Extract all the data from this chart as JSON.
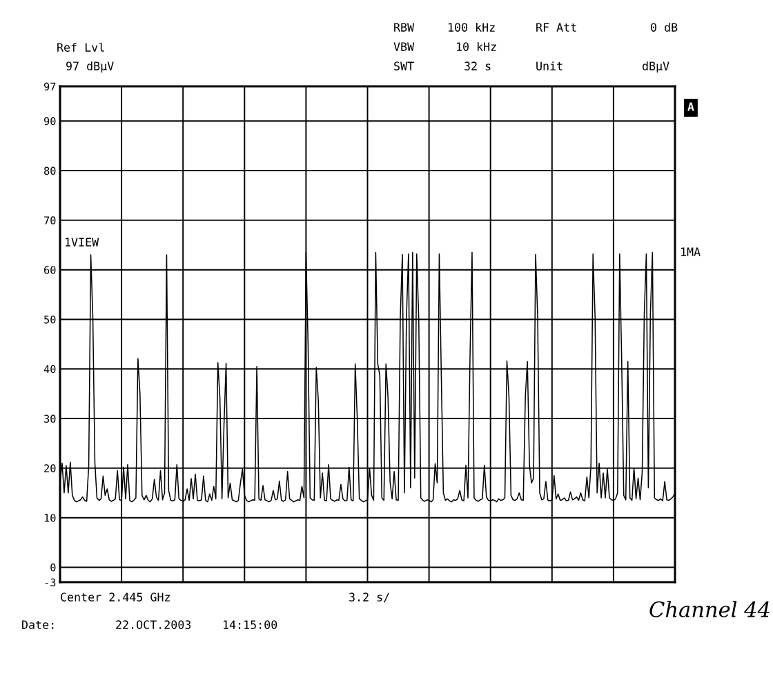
{
  "chart_data": {
    "type": "line",
    "categories": [
      null,
      null,
      null,
      null,
      null,
      null,
      null,
      null,
      null,
      null,
      null,
      null,
      null,
      null,
      null,
      null,
      null,
      null,
      null,
      null,
      null,
      null,
      null,
      null,
      null,
      null,
      null,
      null,
      null,
      null,
      null,
      null,
      null,
      null,
      null,
      null,
      null,
      null,
      null,
      null,
      null,
      null,
      null,
      null,
      null,
      null,
      null,
      null,
      null,
      null,
      null,
      null,
      null,
      null,
      null,
      null,
      null,
      null,
      null,
      null,
      null,
      null,
      null,
      null,
      null,
      null,
      null,
      null,
      null,
      null,
      null,
      null,
      null,
      null,
      null,
      null,
      null,
      null,
      null,
      null,
      null,
      null,
      null,
      null,
      null,
      null,
      null,
      null,
      null,
      null,
      null,
      null,
      null,
      null,
      null,
      null,
      null,
      null,
      null,
      null,
      null,
      null,
      null,
      null,
      null,
      null,
      null,
      null,
      null,
      null,
      null,
      null,
      null,
      null,
      null,
      null,
      null,
      null,
      null,
      null,
      null,
      null,
      null,
      null,
      null,
      null,
      null,
      null,
      null,
      null,
      null,
      null,
      null,
      null,
      null,
      null,
      null,
      null,
      null,
      null,
      null,
      null,
      null,
      null,
      null,
      null,
      null,
      null,
      null,
      null,
      null,
      null,
      null,
      null,
      null,
      null,
      null,
      null,
      null,
      null,
      null,
      null,
      null,
      null,
      null,
      null,
      null,
      null,
      null,
      null,
      null,
      null,
      null,
      null,
      null,
      null,
      null,
      null,
      null,
      null,
      null,
      null,
      null,
      null,
      null,
      null,
      null,
      null,
      null,
      null,
      null,
      null,
      null,
      null,
      null,
      null,
      null,
      null,
      null,
      null,
      null,
      null,
      null,
      null,
      null,
      null,
      null,
      null,
      null,
      null,
      null,
      null,
      null,
      null,
      null,
      null,
      null,
      null,
      null,
      null,
      null,
      null,
      null,
      null,
      null,
      null,
      null,
      null,
      null,
      null,
      null,
      null,
      null,
      null,
      null,
      null,
      null,
      null,
      null,
      null,
      null,
      null,
      null,
      null,
      null,
      null,
      null,
      null,
      null,
      null,
      null,
      null,
      null,
      null,
      null,
      null,
      null,
      null,
      null,
      null,
      null,
      null,
      null,
      null,
      null,
      null,
      null,
      null,
      null,
      null,
      null,
      null,
      null,
      null,
      null,
      null,
      null,
      null,
      null,
      null,
      null,
      null,
      null,
      null,
      null,
      null,
      null,
      null,
      null,
      null,
      null,
      null,
      null,
      null,
      null,
      null,
      null,
      null,
      null,
      null,
      null
    ],
    "series": [
      {
        "color": "#000000",
        "values": [
          17,
          21,
          15,
          20.5,
          15,
          21.2,
          14.5,
          13.5,
          13.2,
          13.4,
          13.6,
          14.2,
          13.5,
          13.3,
          20.5,
          63,
          50.3,
          21,
          14,
          13.5,
          13.8,
          18.4,
          14.5,
          15.8,
          13.6,
          13.3,
          13.5,
          13.8,
          19.5,
          13.6,
          13.5,
          20.2,
          13.8,
          20.7,
          13.5,
          13.2,
          13.5,
          14,
          42.1,
          35,
          14.5,
          13.6,
          14.5,
          13.5,
          13.2,
          13.8,
          17.7,
          14.2,
          13.5,
          19.5,
          13.6,
          15,
          63,
          15.5,
          13.5,
          13.4,
          13.6,
          20.7,
          13.8,
          13.5,
          13.3,
          13.6,
          15.8,
          13.5,
          17.9,
          13.8,
          18.8,
          13.5,
          13.4,
          13.6,
          18.4,
          13.5,
          13.2,
          14.8,
          13.5,
          16.3,
          13.8,
          41.3,
          34,
          13.8,
          29,
          41.1,
          14,
          17,
          13.6,
          13.4,
          13.2,
          13.5,
          17,
          19.8,
          14.5,
          13.5,
          13.2,
          13.4,
          13.6,
          13.5,
          40.5,
          13.8,
          13.5,
          16.5,
          13.6,
          13.4,
          13.2,
          13.5,
          15.5,
          13.6,
          13.8,
          17.4,
          13.5,
          13.3,
          13.6,
          19.3,
          13.8,
          13.5,
          13.2,
          13.4,
          13.6,
          13.5,
          16.3,
          14,
          63.5,
          45,
          14,
          13.6,
          13.5,
          40.3,
          33.7,
          14,
          19,
          13.5,
          13.4,
          20.7,
          13.8,
          13.5,
          13.3,
          13.6,
          13.5,
          16.7,
          13.8,
          13.4,
          13.5,
          20.2,
          13.6,
          13.4,
          41,
          30,
          13.8,
          13.5,
          13.2,
          13.4,
          13.6,
          20,
          14.5,
          13.5,
          63.5,
          41,
          38.7,
          14,
          13.5,
          41,
          34.3,
          17.2,
          13.8,
          19.3,
          13.6,
          13.5,
          50.7,
          63.1,
          15,
          50.7,
          63.2,
          16,
          63.5,
          18,
          63.2,
          50,
          14,
          13.5,
          13.3,
          13.6,
          13.5,
          13.2,
          13.6,
          20.9,
          17,
          63.2,
          38.5,
          15,
          13.5,
          13.8,
          13.4,
          13.2,
          13.6,
          13.5,
          13.8,
          15.5,
          13.6,
          13.4,
          20.6,
          14,
          42.4,
          63.5,
          14,
          13.5,
          13.3,
          13.6,
          13.8,
          20.6,
          14.2,
          13.5,
          13.4,
          13.6,
          13.5,
          13.2,
          13.8,
          13.5,
          13.6,
          14,
          41.6,
          34.5,
          14.5,
          13.6,
          13.5,
          13.8,
          15,
          13.6,
          13.5,
          34.5,
          41.5,
          20.6,
          17,
          18,
          63.1,
          50.6,
          15,
          13.6,
          13.8,
          17.3,
          13.5,
          13.4,
          13.6,
          18.5,
          13.8,
          14.8,
          13.5,
          13.6,
          14,
          13.4,
          13.5,
          15.2,
          13.6,
          13.8,
          14.2,
          13.5,
          15,
          13.6,
          13.4,
          18.2,
          14,
          20.6,
          63.2,
          50.6,
          15,
          21,
          14,
          19,
          14,
          19.9,
          14,
          13.6,
          13.5,
          13.8,
          15,
          63.2,
          41.4,
          14.5,
          13.6,
          41.5,
          14,
          13.5,
          20,
          13.8,
          18,
          13.6,
          19.2,
          50.9,
          63.2,
          16,
          51.1,
          63.5,
          14,
          13.6,
          13.5,
          13.8,
          13.4,
          17.3,
          13.6,
          13.5,
          13.8,
          14.2,
          15
        ]
      }
    ],
    "ylim": [
      -3,
      97
    ],
    "yticks": [
      97,
      90,
      80,
      70,
      60,
      50,
      40,
      30,
      20,
      10,
      0,
      -3
    ],
    "grid": true,
    "line_style": "solid",
    "annotations": [
      "Ref Lvl",
      "97 dBµV",
      "RBW",
      "100 kHz",
      "RF Att",
      "0 dB",
      "VBW",
      "10 kHz",
      "SWT",
      "32 s",
      "Unit",
      "dBµV",
      "A",
      "1VIEW",
      "1MA",
      "Center 2.445 GHz",
      "3.2 s/",
      "Date:",
      "22.OCT.2003",
      "14:15:00",
      "Channel 44"
    ]
  }
}
